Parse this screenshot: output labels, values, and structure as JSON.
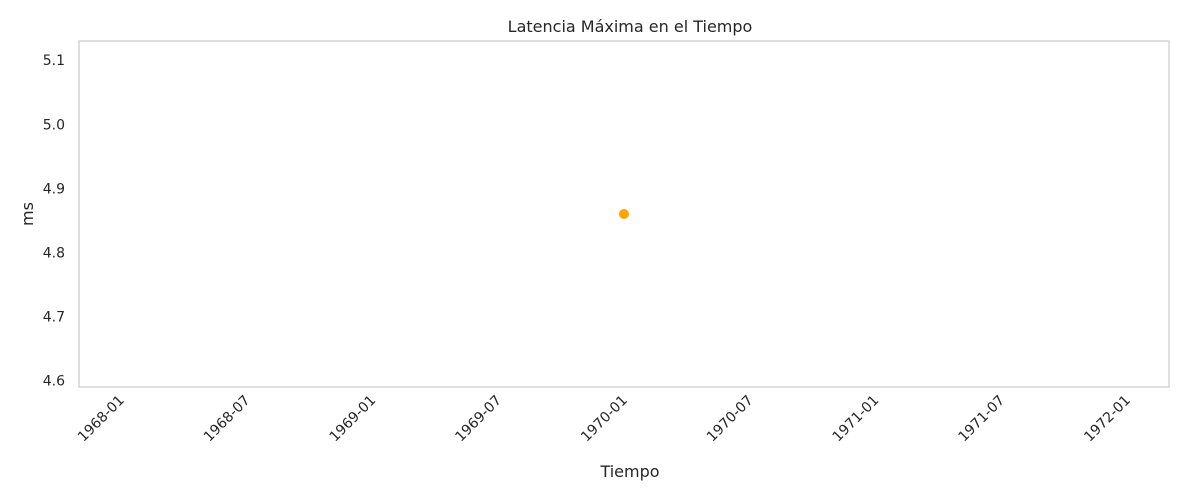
{
  "chart_data": {
    "type": "scatter",
    "title": "Latencia Máxima en el Tiempo",
    "xlabel": "Tiempo",
    "ylabel": "ms",
    "x_ticks": [
      "1968-01",
      "1968-07",
      "1969-01",
      "1969-07",
      "1970-01",
      "1970-07",
      "1971-01",
      "1971-07",
      "1972-01"
    ],
    "y_ticks": [
      "4.6",
      "4.7",
      "4.8",
      "4.9",
      "5.0",
      "5.1"
    ],
    "xlim": [
      "1967-11",
      "1972-03"
    ],
    "ylim": [
      4.59,
      5.13
    ],
    "points": [
      {
        "x": "1970-01-01",
        "y": 4.86
      }
    ],
    "point_color": "#ffa500",
    "frame_color": "#cccccc",
    "grid": false,
    "legend": "none"
  }
}
